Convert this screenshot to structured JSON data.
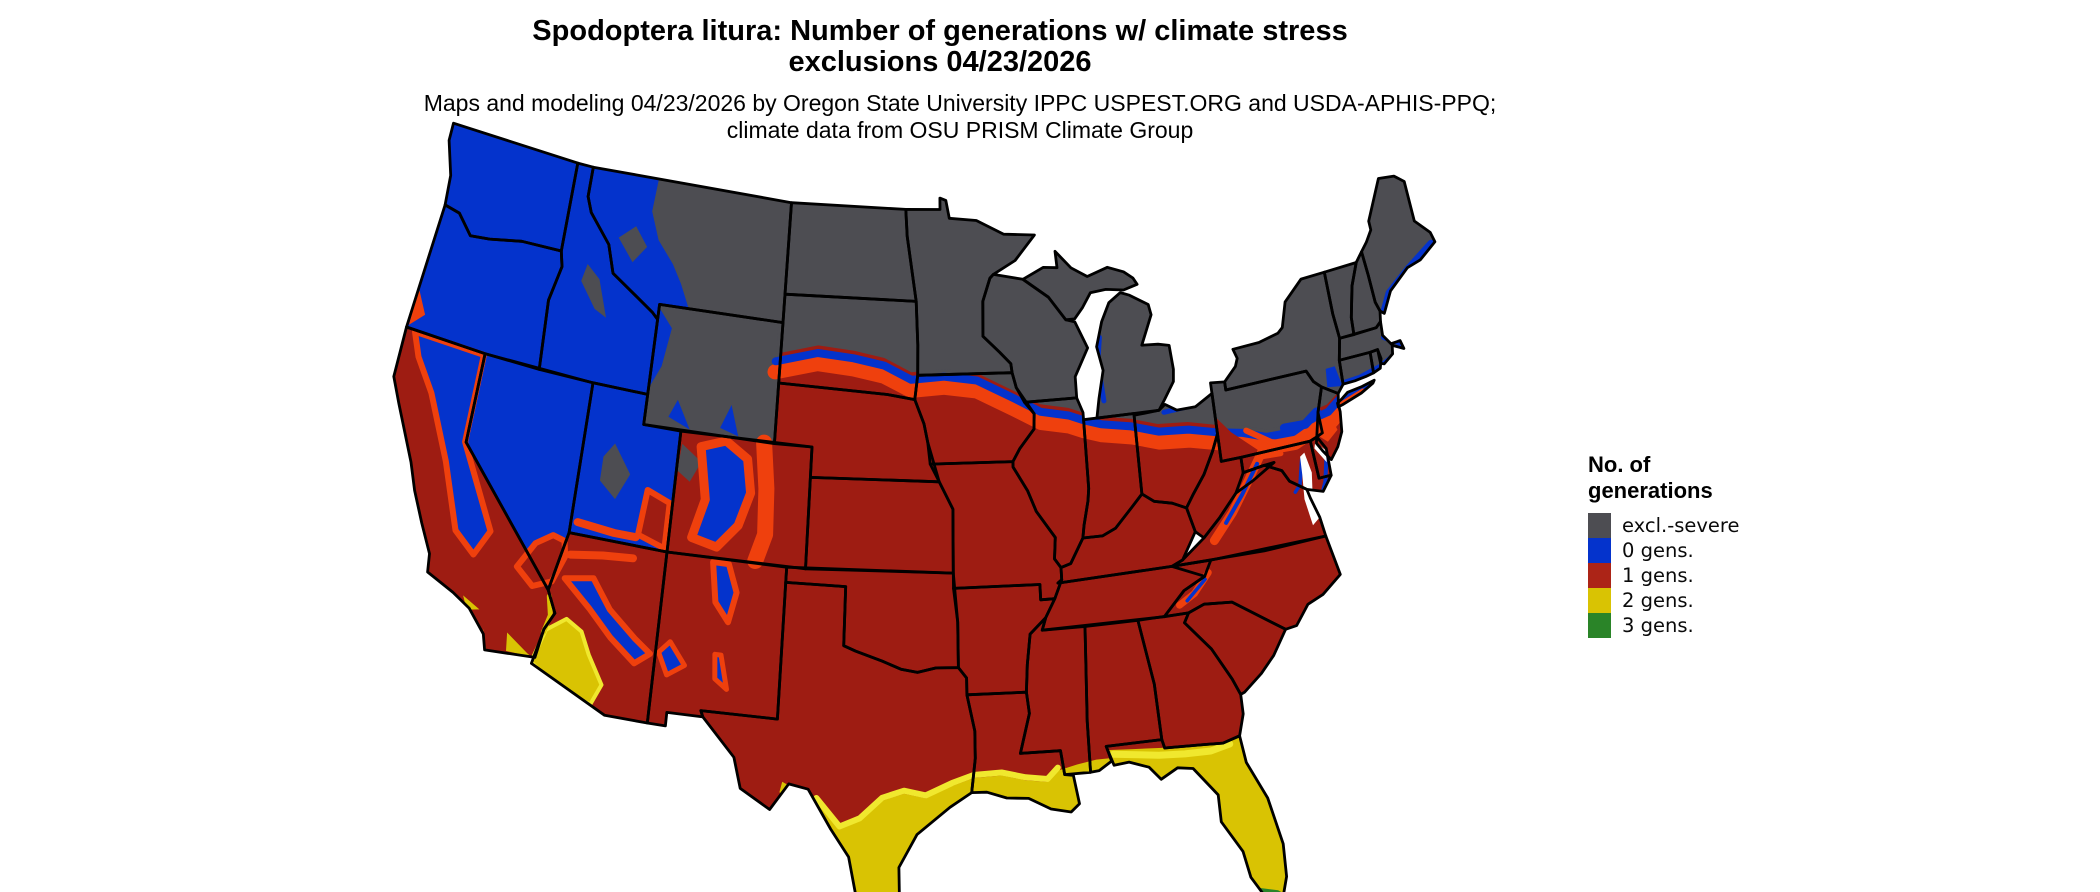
{
  "title": "Spodoptera litura: Number of generations w/ climate stress exclusions 04/23/2026",
  "subtitle": "Maps and modeling 04/23/2026 by Oregon State University IPPC USPEST.ORG and USDA-APHIS-PPQ; climate data from OSU PRISM Climate Group",
  "legend": {
    "title": "No. of generations",
    "items": [
      {
        "label": "excl.-severe",
        "class": "excluded",
        "color": "#4D4D52"
      },
      {
        "label": "0 gens.",
        "class": "gens0",
        "color": "#0433CC"
      },
      {
        "label": "1 gens.",
        "class": "gens1",
        "color": "#AC2417"
      },
      {
        "label": "2 gens.",
        "class": "gens2",
        "color": "#D9C303"
      },
      {
        "label": "3 gens.",
        "class": "gens3",
        "color": "#2A8428"
      }
    ]
  },
  "map_data": {
    "type": "choropleth",
    "region": "contiguous United States",
    "date_shown": "04/23/2026",
    "class_colors": {
      "excluded": "#4D4D52",
      "gens0": "#0433CC",
      "gens1": "#9E1C12",
      "gens1_hot": "#EF400D",
      "gens2": "#D9C303",
      "gens2_hot": "#F0E82E",
      "gens3": "#2A8428",
      "water": "#FFFFFF",
      "border": "#000000"
    },
    "state_classes": {
      "WA": "gens0",
      "OR": "gens0",
      "CA": "gens1",
      "NV": "gens0",
      "ID": "gens0",
      "MT": "gens0",
      "WY": "excluded",
      "UT": "gens0",
      "CO": "gens1",
      "AZ": "gens1",
      "NM": "gens1",
      "ND": "excluded",
      "SD": "gens1",
      "NE": "gens1",
      "KS": "gens1",
      "OK": "gens1",
      "TX": "gens1",
      "MN": "excluded",
      "IA": "gens1",
      "MO": "gens1",
      "AR": "gens1",
      "LA": "gens1",
      "WI": "excluded",
      "IL": "gens1",
      "IN": "gens1",
      "OH": "gens1",
      "MI": "excluded",
      "MIU": "excluded",
      "KY": "gens1",
      "TN": "gens1",
      "MS": "gens1",
      "AL": "gens1",
      "GA": "gens1",
      "FL": "gens2",
      "SC": "gens1",
      "NC": "gens1",
      "VA": "gens1",
      "WV": "gens1",
      "MD": "gens1",
      "DE": "gens1",
      "NJ": "gens1",
      "PA": "excluded",
      "NY": "excluded",
      "LI": "gens0",
      "CT": "excluded",
      "RI": "excluded",
      "MA": "excluded",
      "VT": "excluded",
      "NH": "excluded",
      "ME": "excluded"
    }
  }
}
